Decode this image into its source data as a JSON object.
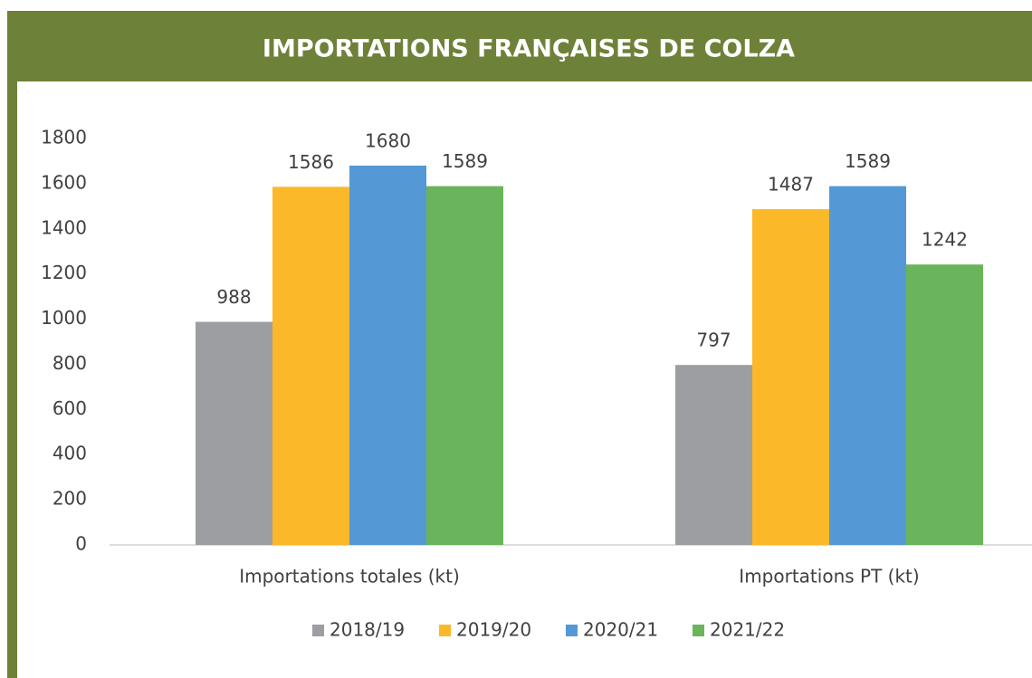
{
  "chart_data": {
    "type": "bar",
    "title": "IMPORTATIONS FRANÇAISES DE COLZA",
    "categories": [
      "Importations totales (kt)",
      "Importations PT (kt)"
    ],
    "series": [
      {
        "name": "2018/19",
        "color": "#9d9ea2",
        "values": [
          988,
          797
        ]
      },
      {
        "name": "2019/20",
        "color": "#fbb829",
        "values": [
          1586,
          1487
        ]
      },
      {
        "name": "2020/21",
        "color": "#5598d6",
        "values": [
          1680,
          1589
        ]
      },
      {
        "name": "2021/22",
        "color": "#6ab55b",
        "values": [
          1589,
          1242
        ]
      }
    ],
    "ylim": [
      0,
      1800
    ],
    "yticks": [
      0,
      200,
      400,
      600,
      800,
      1000,
      1200,
      1400,
      1600,
      1800
    ],
    "grid": false,
    "legend": "bottom"
  }
}
